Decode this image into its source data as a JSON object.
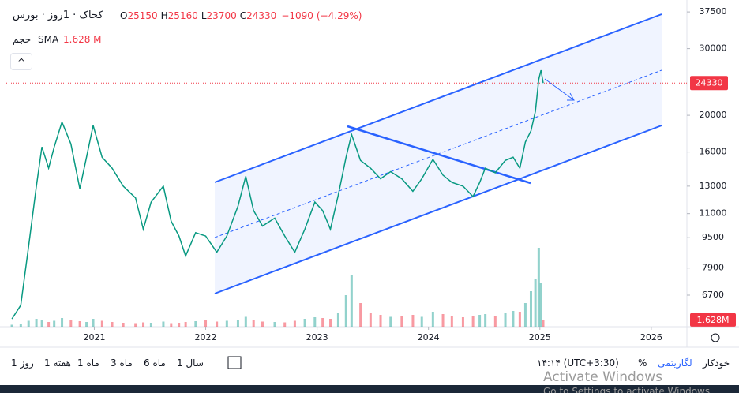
{
  "chart_data": {
    "type": "line",
    "symbol": "کخاک · 1روز · بورس",
    "ohlc": [
      {
        "label": "O",
        "value": 25150
      },
      {
        "label": "H",
        "value": 25160
      },
      {
        "label": "L",
        "value": 23700
      },
      {
        "label": "C",
        "value": 24330
      }
    ],
    "change": {
      "value": -1090,
      "label": "−1090"
    },
    "change_pct": {
      "value": -4.29,
      "label": "(−4.29%)"
    },
    "volume_title": "حجم",
    "volume_indicator": "SMA",
    "volume_last": {
      "value": 1.628,
      "label": "1.628 M"
    },
    "volume_axis_label": {
      "value": 1.628,
      "label": "1.628M"
    },
    "last_price_color": "#f23645",
    "log_scale": true,
    "x": [
      2020.26,
      2020.34,
      2020.41,
      2020.48,
      2020.53,
      2020.59,
      2020.64,
      2020.71,
      2020.79,
      2020.87,
      2020.93,
      2020.99,
      2021.07,
      2021.16,
      2021.26,
      2021.37,
      2021.44,
      2021.51,
      2021.62,
      2021.69,
      2021.76,
      2021.82,
      2021.91,
      2022.0,
      2022.1,
      2022.19,
      2022.29,
      2022.36,
      2022.43,
      2022.51,
      2022.62,
      2022.71,
      2022.8,
      2022.89,
      2022.98,
      2023.05,
      2023.12,
      2023.19,
      2023.26,
      2023.31,
      2023.39,
      2023.48,
      2023.57,
      2023.66,
      2023.76,
      2023.86,
      2023.94,
      2024.04,
      2024.13,
      2024.21,
      2024.31,
      2024.4,
      2024.46,
      2024.51,
      2024.6,
      2024.69,
      2024.76,
      2024.82,
      2024.87,
      2024.92,
      2024.96,
      2024.99,
      2025.01,
      2025.03
    ],
    "series": [
      {
        "color": "#089981",
        "values": [
          5800,
          6300,
          9000,
          13000,
          16500,
          14500,
          16500,
          19200,
          16800,
          12800,
          15500,
          18800,
          15500,
          14500,
          13000,
          12100,
          10000,
          11800,
          13000,
          10500,
          9600,
          8500,
          9800,
          9600,
          8700,
          9600,
          11500,
          13800,
          11200,
          10200,
          10700,
          9600,
          8700,
          10000,
          11800,
          11200,
          10000,
          12300,
          15500,
          17800,
          15200,
          14500,
          13600,
          14200,
          13600,
          12600,
          13600,
          15300,
          13900,
          13300,
          13000,
          12200,
          13300,
          14500,
          14100,
          15200,
          15500,
          14500,
          17000,
          18200,
          20500,
          24900,
          26300,
          24330
        ]
      }
    ],
    "volume": {
      "up_color": "#26a69a",
      "down_color": "#f23645",
      "ylim": [
        0,
        40
      ],
      "values": [
        0.5,
        0.8,
        1.5,
        2.0,
        1.8,
        1.2,
        1.5,
        2.2,
        1.6,
        1.4,
        1.2,
        2.0,
        1.5,
        1.2,
        1.0,
        0.9,
        1.1,
        1.0,
        1.3,
        0.9,
        1.0,
        1.2,
        1.4,
        1.6,
        1.3,
        1.5,
        1.8,
        2.5,
        1.6,
        1.3,
        1.2,
        1.1,
        1.5,
        2.0,
        2.4,
        2.2,
        2.0,
        3.5,
        8.0,
        13.0,
        6.0,
        3.5,
        3.0,
        2.5,
        2.8,
        3.0,
        2.5,
        3.8,
        3.2,
        2.6,
        2.4,
        2.8,
        3.0,
        3.2,
        2.8,
        3.5,
        4.0,
        3.8,
        6.0,
        9.0,
        12.0,
        20.0,
        11.0,
        1.628
      ]
    },
    "xlim": [
      2020.21,
      2026.32
    ],
    "xticks": [
      2021,
      2022,
      2023,
      2024,
      2025,
      2026
    ],
    "ylim": [
      5530,
      38800
    ],
    "yticks": [
      37500,
      30000,
      20000,
      16000,
      13000,
      11000,
      9500,
      7900,
      6700
    ]
  },
  "toolbar": {
    "ranges": [
      "1 روز",
      "1 هفته",
      "1 ماه",
      "3 ماه",
      "6 ماه",
      "1 سال"
    ],
    "time": "۱۴:۱۴ (UTC+3:30)",
    "percent": "%",
    "log": "لگاریتمی",
    "auto": "خودکار"
  },
  "watermark": {
    "title": "Activate Windows",
    "subtitle": "Go to Settings to activate Windows."
  }
}
